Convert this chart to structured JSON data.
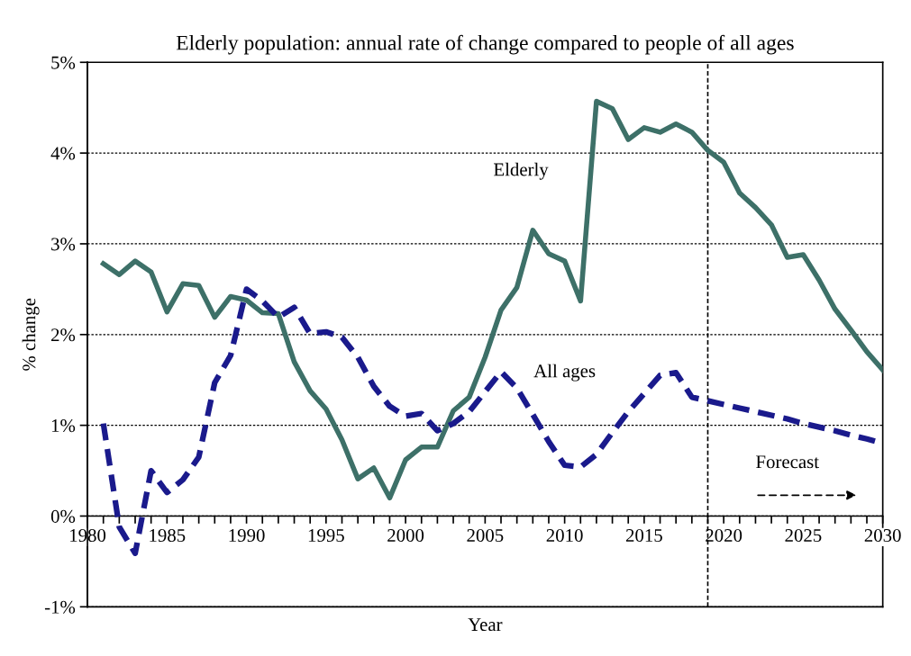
{
  "chart_data": {
    "type": "line",
    "title": "Elderly population: annual rate of change compared to people of all ages",
    "xlabel": "Year",
    "ylabel": "% change",
    "x": [
      1981,
      1982,
      1983,
      1984,
      1985,
      1986,
      1987,
      1988,
      1989,
      1990,
      1991,
      1992,
      1993,
      1994,
      1995,
      1996,
      1997,
      1998,
      1999,
      2000,
      2001,
      2002,
      2003,
      2004,
      2005,
      2006,
      2007,
      2008,
      2009,
      2010,
      2011,
      2012,
      2013,
      2014,
      2015,
      2016,
      2017,
      2018,
      2019,
      2020,
      2021,
      2022,
      2023,
      2024,
      2025,
      2026,
      2027,
      2028,
      2029,
      2030
    ],
    "series": [
      {
        "name": "Elderly",
        "color": "#3d7068",
        "line_style": "solid",
        "values": [
          2.78,
          2.66,
          2.81,
          2.69,
          2.25,
          2.56,
          2.54,
          2.19,
          2.42,
          2.38,
          2.24,
          2.23,
          1.7,
          1.38,
          1.18,
          0.84,
          0.41,
          0.53,
          0.2,
          0.62,
          0.76,
          0.76,
          1.16,
          1.31,
          1.75,
          2.27,
          2.52,
          3.15,
          2.89,
          2.81,
          2.37,
          4.57,
          4.49,
          4.15,
          4.28,
          4.23,
          4.32,
          4.23,
          4.03,
          3.9,
          3.56,
          3.4,
          3.21,
          2.85,
          2.88,
          2.6,
          2.28,
          2.05,
          1.81,
          1.61
        ]
      },
      {
        "name": "All ages",
        "color": "#1a1a8c",
        "line_style": "dashed",
        "values": [
          1.02,
          -0.12,
          -0.41,
          0.5,
          0.26,
          0.4,
          0.65,
          1.47,
          1.77,
          2.5,
          2.37,
          2.19,
          2.3,
          2.01,
          2.03,
          1.97,
          1.75,
          1.43,
          1.21,
          1.1,
          1.13,
          0.94,
          1.02,
          1.15,
          1.37,
          1.59,
          1.41,
          1.12,
          0.82,
          0.56,
          0.54,
          0.68,
          0.92,
          1.15,
          1.35,
          1.55,
          1.58,
          1.31,
          1.27,
          1.23,
          1.19,
          1.15,
          1.11,
          1.07,
          1.02,
          0.98,
          0.94,
          0.89,
          0.85,
          0.8
        ]
      }
    ],
    "xlim": [
      1980,
      2030
    ],
    "ylim": [
      -1,
      5
    ],
    "xticks": [
      1980,
      {
        "value": 1981,
        "label": null
      },
      {
        "value": 1982,
        "label": null
      },
      {
        "value": 1983,
        "label": null
      },
      {
        "value": 1984,
        "label": null
      },
      1985,
      {
        "value": 1986,
        "label": null
      },
      {
        "value": 1987,
        "label": null
      },
      {
        "value": 1988,
        "label": null
      },
      {
        "value": 1989,
        "label": null
      },
      1990,
      {
        "value": 1991,
        "label": null
      },
      {
        "value": 1992,
        "label": null
      },
      {
        "value": 1993,
        "label": null
      },
      {
        "value": 1994,
        "label": null
      },
      1995,
      {
        "value": 1996,
        "label": null
      },
      {
        "value": 1997,
        "label": null
      },
      {
        "value": 1998,
        "label": null
      },
      {
        "value": 1999,
        "label": null
      },
      2000,
      {
        "value": 2001,
        "label": null
      },
      {
        "value": 2002,
        "label": null
      },
      {
        "value": 2003,
        "label": null
      },
      {
        "value": 2004,
        "label": null
      },
      2005,
      {
        "value": 2006,
        "label": null
      },
      {
        "value": 2007,
        "label": null
      },
      {
        "value": 2008,
        "label": null
      },
      {
        "value": 2009,
        "label": null
      },
      2010,
      {
        "value": 2011,
        "label": null
      },
      {
        "value": 2012,
        "label": null
      },
      {
        "value": 2013,
        "label": null
      },
      {
        "value": 2014,
        "label": null
      },
      2015,
      {
        "value": 2016,
        "label": null
      },
      {
        "value": 2017,
        "label": null
      },
      {
        "value": 2018,
        "label": null
      },
      {
        "value": 2019,
        "label": null
      },
      2020,
      {
        "value": 2021,
        "label": null
      },
      {
        "value": 2022,
        "label": null
      },
      {
        "value": 2023,
        "label": null
      },
      {
        "value": 2024,
        "label": null
      },
      2025,
      {
        "value": 2026,
        "label": null
      },
      {
        "value": 2027,
        "label": null
      },
      {
        "value": 2028,
        "label": null
      },
      {
        "value": 2029,
        "label": null
      },
      2030
    ],
    "yticks": [
      {
        "value": -1,
        "label": "-1%"
      },
      {
        "value": 0,
        "label": "0%"
      },
      {
        "value": 1,
        "label": "1%"
      },
      {
        "value": 2,
        "label": "2%"
      },
      {
        "value": 3,
        "label": "3%"
      },
      {
        "value": 4,
        "label": "4%"
      },
      {
        "value": 5,
        "label": "5%"
      }
    ],
    "grid": "y",
    "legend": false,
    "marker": "none",
    "ref_lines": [
      {
        "axis": "x",
        "value": 2019,
        "color": "#000000",
        "line_style": "dashed"
      }
    ],
    "annotations": [
      "Forecast"
    ]
  }
}
